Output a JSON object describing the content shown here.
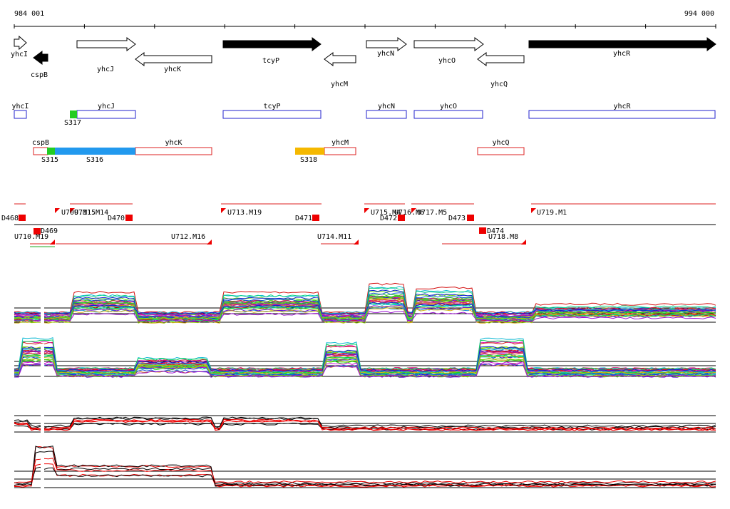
{
  "ruler": {
    "start": "984 001",
    "end": "994 000"
  },
  "gene_map": [
    "yhcI",
    "cspB",
    "yhcJ",
    "yhcK",
    "tcyP",
    "yhcM",
    "yhcN",
    "yhcO",
    "yhcQ",
    "yhcR"
  ],
  "forward_track": {
    "genes": [
      "yhcI",
      "yhcJ",
      "tcyP",
      "yhcN",
      "yhcO",
      "yhcR"
    ],
    "segments": [
      "S317"
    ]
  },
  "reverse_track": {
    "genes": [
      "cspB",
      "yhcK",
      "yhcM",
      "yhcQ"
    ],
    "segments": [
      "S315",
      "S316",
      "S318"
    ]
  },
  "features": [
    "D468",
    "U709.M15",
    "U711.M14",
    "D470",
    "U713.M19",
    "D471",
    "U715.M4",
    "U716.M6",
    "D472",
    "U717.M5",
    "D473",
    "U719.M1",
    "U710.M19",
    "D469",
    "U712.M16",
    "U714.M11",
    "D474",
    "U718.M8"
  ]
}
